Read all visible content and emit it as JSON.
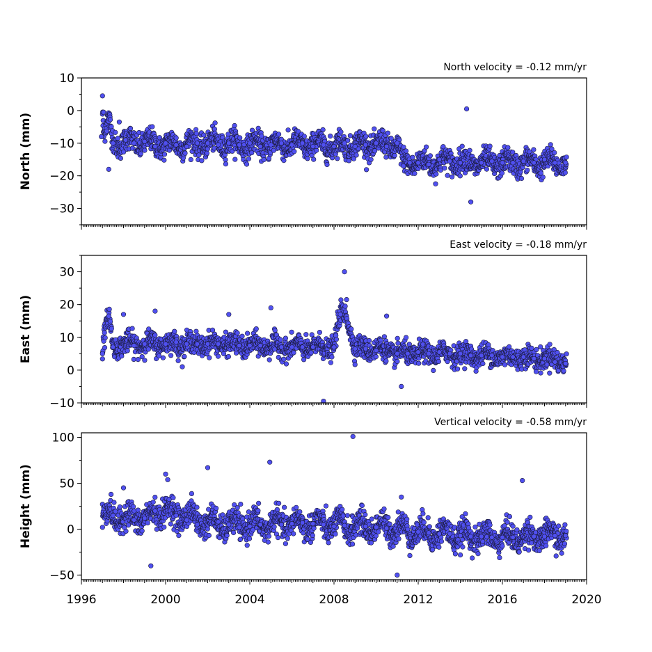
{
  "chart_data": [
    {
      "type": "scatter",
      "ylabel": "North (mm)",
      "annotation": "North velocity = -0.12 mm/yr",
      "xlim": [
        1996,
        2020
      ],
      "ylim": [
        -35,
        10
      ],
      "yticks": [
        10,
        0,
        -10,
        -20,
        -30
      ],
      "ytick_labels": [
        "10",
        "0",
        "−10",
        "−20",
        "−30"
      ],
      "color": "#5050f0",
      "series": [
        {
          "x": [
            1996.95,
            1997.0,
            1997.05,
            1997.3,
            1997.5,
            1997.8,
            1998.1,
            1998.5,
            1999.0,
            1999.5,
            2000.0,
            2000.5,
            2001.0,
            2001.5,
            2002.0,
            2002.5,
            2003.0,
            2003.5,
            2004.0,
            2004.5,
            2005.0,
            2005.5,
            2006.0,
            2006.5,
            2007.0,
            2007.5,
            2008.0,
            2008.5,
            2009.0,
            2009.5,
            2010.0,
            2010.5,
            2011.0,
            2011.3,
            2011.6,
            2012.0,
            2012.5,
            2013.0,
            2013.5,
            2014.0,
            2014.3,
            2014.5,
            2015.0,
            2015.5,
            2016.0,
            2016.5,
            2017.0,
            2017.5,
            2018.0,
            2018.5,
            2019.0
          ],
          "y": [
            -8,
            4.5,
            -0.5,
            -18,
            -10,
            -3.5,
            -9,
            -10,
            -9.5,
            -11,
            -10,
            -10.5,
            -11,
            -10,
            -10,
            -10.5,
            -10,
            -10.5,
            -10,
            -11,
            -10.5,
            -10,
            -10.5,
            -10,
            -11,
            -10.5,
            -11,
            -10,
            -11,
            -10.5,
            -10,
            -11,
            -10,
            -17,
            -16,
            -16,
            -16.5,
            -15,
            -15.5,
            -16,
            0.5,
            -28,
            -16,
            -15.5,
            -16,
            -16,
            -15.5,
            -16,
            -15,
            -16,
            -16
          ]
        }
      ]
    },
    {
      "type": "scatter",
      "ylabel": "East (mm)",
      "annotation": "East velocity = -0.18 mm/yr",
      "xlim": [
        1996,
        2020
      ],
      "ylim": [
        -10,
        35
      ],
      "yticks": [
        30,
        20,
        10,
        0,
        -10
      ],
      "ytick_labels": [
        "30",
        "20",
        "10",
        "0",
        "−10"
      ],
      "color": "#5050f0",
      "series": [
        {
          "x": [
            1997.0,
            1997.3,
            1997.5,
            1998.0,
            1998.5,
            1999.0,
            1999.5,
            2000.0,
            2000.5,
            2001.0,
            2001.5,
            2002.0,
            2002.5,
            2003.0,
            2003.5,
            2004.0,
            2004.5,
            2005.0,
            2005.5,
            2006.0,
            2006.5,
            2007.0,
            2007.5,
            2008.0,
            2008.3,
            2008.5,
            2008.6,
            2009.0,
            2009.5,
            2010.0,
            2010.5,
            2011.0,
            2011.2,
            2011.5,
            2012.0,
            2012.5,
            2013.0,
            2013.5,
            2014.0,
            2014.5,
            2015.0,
            2015.5,
            2016.0,
            2016.5,
            2017.0,
            2017.5,
            2018.0,
            2018.5,
            2019.0
          ],
          "y": [
            5,
            16.5,
            7,
            17,
            7.5,
            8,
            18,
            8,
            8.5,
            8,
            8,
            8,
            8,
            17,
            7.5,
            7.5,
            7.5,
            19,
            7,
            7,
            7,
            7,
            -9.5,
            7,
            17,
            30,
            21.5,
            6.5,
            6.5,
            6,
            16.5,
            5,
            -5,
            5,
            5.5,
            5,
            5.5,
            5,
            5,
            4.5,
            4.5,
            4.5,
            4,
            4,
            4,
            3.5,
            3.5,
            2.5,
            2
          ]
        }
      ]
    },
    {
      "type": "scatter",
      "ylabel": "Height (mm)",
      "annotation": "Vertical velocity = -0.58 mm/yr",
      "xlim": [
        1996,
        2020
      ],
      "ylim": [
        -55,
        105
      ],
      "yticks": [
        100,
        50,
        0,
        -50
      ],
      "ytick_labels": [
        "100",
        "50",
        "0",
        "−50"
      ],
      "xticks": [
        1996,
        2000,
        2004,
        2008,
        2012,
        2016,
        2020
      ],
      "xtick_labels": [
        "1996",
        "2000",
        "2004",
        "2008",
        "2012",
        "2016",
        "2020"
      ],
      "color": "#5050f0",
      "series": [
        {
          "x": [
            1997.0,
            1997.5,
            1998.0,
            1998.5,
            1999.0,
            1999.3,
            1999.5,
            2000.0,
            2000.1,
            2000.5,
            2001.0,
            2001.5,
            2002.0,
            2002.5,
            2003.0,
            2003.5,
            2004.0,
            2004.5,
            2004.95,
            2005.5,
            2006.0,
            2006.5,
            2007.0,
            2007.5,
            2008.0,
            2008.5,
            2008.9,
            2009.5,
            2010.0,
            2010.5,
            2011.0,
            2011.2,
            2011.5,
            2012.0,
            2012.5,
            2013.0,
            2013.5,
            2014.0,
            2014.5,
            2015.0,
            2015.5,
            2016.0,
            2016.5,
            2016.95,
            2017.5,
            2018.0,
            2018.5,
            2019.0
          ],
          "y": [
            2,
            15,
            45,
            10,
            12,
            -40,
            20,
            60,
            54,
            15,
            10,
            5,
            67,
            8,
            5,
            2,
            3,
            5,
            73,
            5,
            6,
            7,
            6,
            5,
            3,
            4,
            101,
            3,
            2,
            1,
            -50,
            35,
            0,
            -3,
            -4,
            -5,
            -5,
            -7,
            -8,
            -8,
            -9,
            -9,
            -9,
            53,
            -8,
            -8,
            -7,
            -7
          ]
        }
      ]
    }
  ]
}
